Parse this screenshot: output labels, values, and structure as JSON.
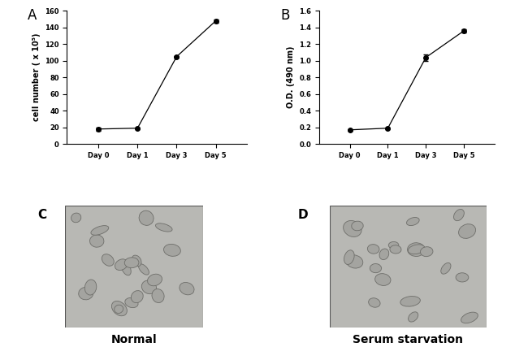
{
  "chart_data": [
    {
      "type": "line",
      "title": "A",
      "categories": [
        "Day 0",
        "Day 1",
        "Day 3",
        "Day 5"
      ],
      "values": [
        18,
        19,
        105,
        148
      ],
      "error": [
        2,
        1,
        1,
        2
      ],
      "y_label": "cell number ( x 10⁵)",
      "ylim": [
        0,
        160
      ],
      "yticks": [
        0,
        20,
        40,
        60,
        80,
        100,
        120,
        140,
        160
      ],
      "color": "#000000",
      "marker": "circle",
      "line_style": "solid"
    },
    {
      "type": "line",
      "title": "B",
      "categories": [
        "Day 0",
        "Day 1",
        "Day 3",
        "Day 5"
      ],
      "values": [
        0.17,
        0.19,
        1.04,
        1.36
      ],
      "error": [
        0.01,
        0.01,
        0.04,
        0.02
      ],
      "y_label": "O.D. (490 nm)",
      "ylim": [
        0,
        1.6
      ],
      "yticks": [
        {
          "value": 0,
          "label": "0.0"
        },
        0.2,
        0.4,
        0.6,
        0.8,
        {
          "value": 1,
          "label": "1.0"
        },
        1.2,
        1.4,
        1.6
      ],
      "color": "#000000",
      "marker": "circle",
      "line_style": "solid"
    }
  ],
  "images": [
    {
      "label": "C",
      "caption": "Normal"
    },
    {
      "label": "D",
      "caption": "Serum starvation"
    }
  ]
}
